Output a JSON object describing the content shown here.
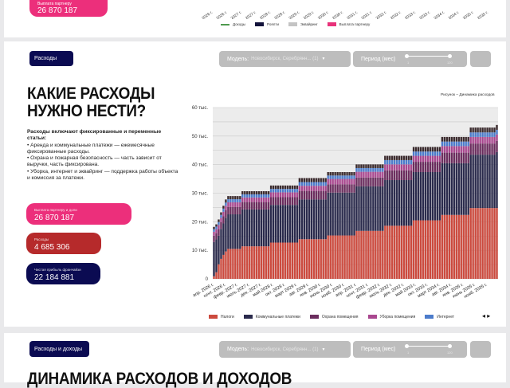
{
  "top_section": {
    "kpi_label": "Выплата партнеру",
    "kpi_value": "26 870 187",
    "x_ticks": [
      "апр. 2026 г.",
      "окт. 2026 г.",
      "апр. 2027 г.",
      "окт. 2027 г.",
      "апр. 2028 г.",
      "окт. 2028 г.",
      "апр. 2029 г.",
      "окт. 2029 г.",
      "апр. 2030 г.",
      "окт. 2030 г.",
      "апр. 2031 г.",
      "окт. 2031 г.",
      "апр. 2032 г.",
      "окт. 2032 г.",
      "апр. 2033 г.",
      "окт. 2033 г.",
      "апр. 2034 г.",
      "окт. 2034 г.",
      "апр. 2035 г.",
      "окт. 2035 г."
    ],
    "legend": [
      {
        "label": "Доходы",
        "color": "#4f9a4f"
      },
      {
        "label": "Роялти",
        "color": "#12123a"
      },
      {
        "label": "Эквайринг",
        "color": "#c4c4c4"
      },
      {
        "label": "Выплата партнеру",
        "color": "#e8327a"
      }
    ]
  },
  "expenses_section": {
    "tab_label": "Расходы",
    "model_label": "Модель:",
    "model_value": "Новосибирск, Серебрянн... (1)",
    "period_label": "Период (мес)",
    "period_min": "1",
    "period_max": "120",
    "title_line1": "КАКИЕ РАСХОДЫ",
    "title_line2": "НУЖНО НЕСТИ?",
    "desc_bold": "Расходы включают фиксированные и переменные статьи:",
    "desc_items": [
      "• Аренда и коммунальные платежи — ежемесячные фиксированные расходы.",
      "• Охрана и пожарная безопасность — часть зависит от выручки, часть фиксирована.",
      "• Уборка, интернет и эквайринг — поддержка работы объекта и комиссия за платежи."
    ],
    "kpis": [
      {
        "label": "Выплата партнеру и доли",
        "value": "26 870 187",
        "color": "#ec2f7b"
      },
      {
        "label": "Расходы",
        "value": "4 685 306",
        "color": "#b62a2b"
      },
      {
        "label": "Чистая прибыль франчайзи",
        "value": "22 184 881",
        "color": "#0b0b52"
      }
    ],
    "figure_caption": "Рисунок – Динамика расходов"
  },
  "chart_data": {
    "type": "bar",
    "stacked": true,
    "x_ticks": [
      "апр. 2026 г.",
      "сент. 2026 г.",
      "февр. 2027 г.",
      "июль 2027 г.",
      "дек. 2027 г.",
      "май 2028 г.",
      "окт. 2028 г.",
      "март 2029 г.",
      "авг. 2029 г.",
      "янв. 2030 г.",
      "июнь 2030 г.",
      "нояб. 2030 г.",
      "апр. 2031 г.",
      "сент. 2031 г.",
      "февр. 2032 г.",
      "июль 2032 г.",
      "дек. 2032 г.",
      "май 2033 г.",
      "окт. 2033 г.",
      "март 2034 г.",
      "авг. 2034 г.",
      "янв. 2035 г.",
      "июнь 2035 г.",
      "нояб. 2035 г."
    ],
    "y_ticks": [
      "0",
      "10 тыс.",
      "20 тыс.",
      "30 тыс.",
      "40 тыс.",
      "50 тыс.",
      "60 тыс."
    ],
    "ylim": [
      0,
      60000
    ],
    "grid": true,
    "legend_position": "bottom",
    "series": [
      {
        "name": "Налоги",
        "color": "#cc4a3e",
        "values": [
          900,
          2300,
          5100,
          7000,
          8400,
          9600,
          10500,
          10500,
          10500,
          10500,
          10500,
          10500,
          11400,
          11400,
          11400,
          11400,
          11400,
          11400,
          11400,
          11400,
          11400,
          11400,
          11400,
          11400,
          12700,
          12700,
          12700,
          12700,
          12700,
          12700,
          12700,
          12700,
          12700,
          12700,
          12700,
          12700,
          13900,
          13900,
          13900,
          13900,
          13900,
          13900,
          13900,
          13900,
          13900,
          13900,
          13900,
          13900,
          15200,
          15200,
          15200,
          15200,
          15200,
          15200,
          15200,
          15200,
          15200,
          15200,
          15200,
          15200,
          16800,
          16800,
          16800,
          16800,
          16800,
          16800,
          16800,
          16800,
          16800,
          16800,
          16800,
          16800,
          18600,
          18600,
          18600,
          18600,
          18600,
          18600,
          18600,
          18600,
          18600,
          18600,
          18600,
          18600,
          20500,
          20500,
          20500,
          20500,
          20500,
          20500,
          20500,
          20500,
          20500,
          20500,
          20500,
          20500,
          22400,
          22400,
          22400,
          22400,
          22400,
          22400,
          22400,
          22400,
          22400,
          22400,
          22400,
          22400,
          24800,
          24800,
          24800,
          24800,
          24800,
          24800,
          24800,
          24800,
          24800,
          24800,
          24800,
          24800
        ]
      },
      {
        "name": "Коммунальные платежи",
        "color": "#2a2a4c",
        "values": [
          12000,
          11500,
          10000,
          10500,
          11000,
          11800,
          12100,
          12100,
          12100,
          12100,
          12100,
          12100,
          12900,
          12900,
          12900,
          12900,
          12900,
          12900,
          12900,
          12900,
          12900,
          12900,
          12900,
          12900,
          13200,
          13200,
          13200,
          13200,
          13200,
          13200,
          13200,
          13200,
          13200,
          13200,
          13200,
          13200,
          13900,
          13900,
          13900,
          13900,
          13900,
          13900,
          13900,
          13900,
          13900,
          13900,
          13900,
          13900,
          15000,
          15000,
          15000,
          15000,
          15000,
          15000,
          15000,
          15000,
          15000,
          15000,
          15000,
          15000,
          15600,
          15600,
          15600,
          15600,
          15600,
          15600,
          15600,
          15600,
          15600,
          15600,
          15600,
          15600,
          16000,
          16000,
          16000,
          16000,
          16000,
          16000,
          16000,
          16000,
          16000,
          16000,
          16000,
          16000,
          16900,
          16900,
          16900,
          16900,
          16900,
          16900,
          16900,
          16900,
          16900,
          16900,
          16900,
          16900,
          18100,
          18100,
          18100,
          18100,
          18100,
          18100,
          18100,
          18100,
          18100,
          18100,
          18100,
          18100,
          18700,
          18700,
          18700,
          18700,
          18700,
          18700,
          18700,
          18700,
          18700,
          18700,
          18700,
          19600
        ]
      },
      {
        "name": "Охрана помещения",
        "color": "#6b2d5e",
        "values": [
          2200,
          2200,
          2300,
          2400,
          2500,
          2600,
          2600,
          2600,
          2600,
          2600,
          2600,
          2600,
          2600,
          2600,
          2600,
          2600,
          2600,
          2600,
          2600,
          2600,
          2600,
          2600,
          2600,
          2600,
          2700,
          2700,
          2700,
          2700,
          2700,
          2700,
          2700,
          2700,
          2700,
          2700,
          2700,
          2700,
          3000,
          3000,
          3000,
          3000,
          3000,
          3000,
          3000,
          3000,
          3000,
          3000,
          3000,
          3000,
          2900,
          2900,
          2900,
          2900,
          2900,
          2900,
          2900,
          2900,
          2900,
          2900,
          2900,
          2900,
          3100,
          3100,
          3100,
          3100,
          3100,
          3100,
          3100,
          3100,
          3100,
          3100,
          3100,
          3100,
          3400,
          3400,
          3400,
          3400,
          3400,
          3400,
          3400,
          3400,
          3400,
          3400,
          3400,
          3400,
          3600,
          3600,
          3600,
          3600,
          3600,
          3600,
          3600,
          3600,
          3600,
          3600,
          3600,
          3600,
          3700,
          3700,
          3700,
          3700,
          3700,
          3700,
          3700,
          3700,
          3700,
          3700,
          3700,
          3700,
          3900,
          3900,
          3900,
          3900,
          3900,
          3900,
          3900,
          3900,
          3900,
          3900,
          3900,
          3900
        ]
      },
      {
        "name": "Уборка помещения",
        "color": "#a9478f",
        "values": [
          1400,
          1400,
          1500,
          1500,
          1600,
          1600,
          1600,
          1600,
          1600,
          1600,
          1600,
          1600,
          1600,
          1600,
          1600,
          1600,
          1600,
          1600,
          1600,
          1600,
          1600,
          1600,
          1600,
          1600,
          1700,
          1700,
          1700,
          1700,
          1700,
          1700,
          1700,
          1700,
          1700,
          1700,
          1700,
          1700,
          1800,
          1800,
          1800,
          1800,
          1800,
          1800,
          1800,
          1800,
          1800,
          1800,
          1800,
          1800,
          1900,
          1900,
          1900,
          1900,
          1900,
          1900,
          1900,
          1900,
          1900,
          1900,
          1900,
          1900,
          2000,
          2000,
          2000,
          2000,
          2000,
          2000,
          2000,
          2000,
          2000,
          2000,
          2000,
          2000,
          2100,
          2100,
          2100,
          2100,
          2100,
          2100,
          2100,
          2100,
          2100,
          2100,
          2100,
          2100,
          2100,
          2100,
          2100,
          2100,
          2100,
          2100,
          2100,
          2100,
          2100,
          2100,
          2100,
          2100,
          2300,
          2300,
          2300,
          2300,
          2300,
          2300,
          2300,
          2300,
          2300,
          2300,
          2300,
          2300,
          2300,
          2300,
          2300,
          2300,
          2300,
          2300,
          2300,
          2300,
          2300,
          2300,
          2300,
          2300
        ]
      },
      {
        "name": "Интернет",
        "color": "#4c7ccb",
        "values": [
          900,
          900,
          1000,
          1000,
          1100,
          1100,
          1100,
          1100,
          1100,
          1100,
          1100,
          1100,
          1100,
          1100,
          1100,
          1100,
          1100,
          1100,
          1100,
          1100,
          1100,
          1100,
          1100,
          1100,
          1200,
          1200,
          1200,
          1200,
          1200,
          1200,
          1200,
          1200,
          1200,
          1200,
          1200,
          1200,
          1300,
          1300,
          1300,
          1300,
          1300,
          1300,
          1300,
          1300,
          1300,
          1300,
          1300,
          1300,
          1200,
          1200,
          1200,
          1200,
          1200,
          1200,
          1200,
          1200,
          1200,
          1200,
          1200,
          1200,
          1300,
          1300,
          1300,
          1300,
          1300,
          1300,
          1300,
          1300,
          1300,
          1300,
          1300,
          1300,
          1500,
          1500,
          1500,
          1500,
          1500,
          1500,
          1500,
          1500,
          1500,
          1500,
          1500,
          1500,
          1500,
          1500,
          1500,
          1500,
          1500,
          1500,
          1500,
          1500,
          1500,
          1500,
          1500,
          1500,
          1600,
          1600,
          1600,
          1600,
          1600,
          1600,
          1600,
          1600,
          1600,
          1600,
          1600,
          1600,
          1600,
          1600,
          1600,
          1600,
          1600,
          1600,
          1600,
          1600,
          1600,
          1600,
          1600,
          1600
        ]
      },
      {
        "name": "",
        "color": "#3b2b2e",
        "values": [
          800,
          800,
          900,
          900,
          1000,
          1100,
          1100,
          1100,
          1100,
          1100,
          1100,
          1100,
          1100,
          1100,
          1100,
          1100,
          1100,
          1100,
          1100,
          1100,
          1100,
          1100,
          1100,
          1100,
          1200,
          1200,
          1200,
          1200,
          1200,
          1200,
          1200,
          1200,
          1200,
          1200,
          1200,
          1200,
          1400,
          1400,
          1400,
          1400,
          1400,
          1400,
          1400,
          1400,
          1400,
          1400,
          1400,
          1400,
          1200,
          1200,
          1200,
          1200,
          1200,
          1200,
          1200,
          1200,
          1200,
          1200,
          1200,
          1200,
          1300,
          1300,
          1300,
          1300,
          1300,
          1300,
          1300,
          1300,
          1300,
          1300,
          1300,
          1300,
          1500,
          1500,
          1500,
          1500,
          1500,
          1500,
          1500,
          1500,
          1500,
          1500,
          1500,
          1500,
          1600,
          1600,
          1600,
          1600,
          1600,
          1600,
          1600,
          1600,
          1600,
          1600,
          1600,
          1600,
          1600,
          1600,
          1600,
          1600,
          1600,
          1600,
          1600,
          1600,
          1600,
          1600,
          1600,
          1600,
          1700,
          1700,
          1700,
          1700,
          1700,
          1700,
          1700,
          1700,
          1700,
          1700,
          1700,
          1700
        ]
      }
    ]
  },
  "bottom_section": {
    "tab_label": "Расходы и доходы",
    "model_label": "Модель:",
    "model_value": "Новосибирск, Серебрянн... (1)",
    "period_label": "Период (мес)",
    "period_min": "1",
    "period_max": "120",
    "title": "ДИНАМИКА РАСХОДОВ И ДОХОДОВ"
  }
}
